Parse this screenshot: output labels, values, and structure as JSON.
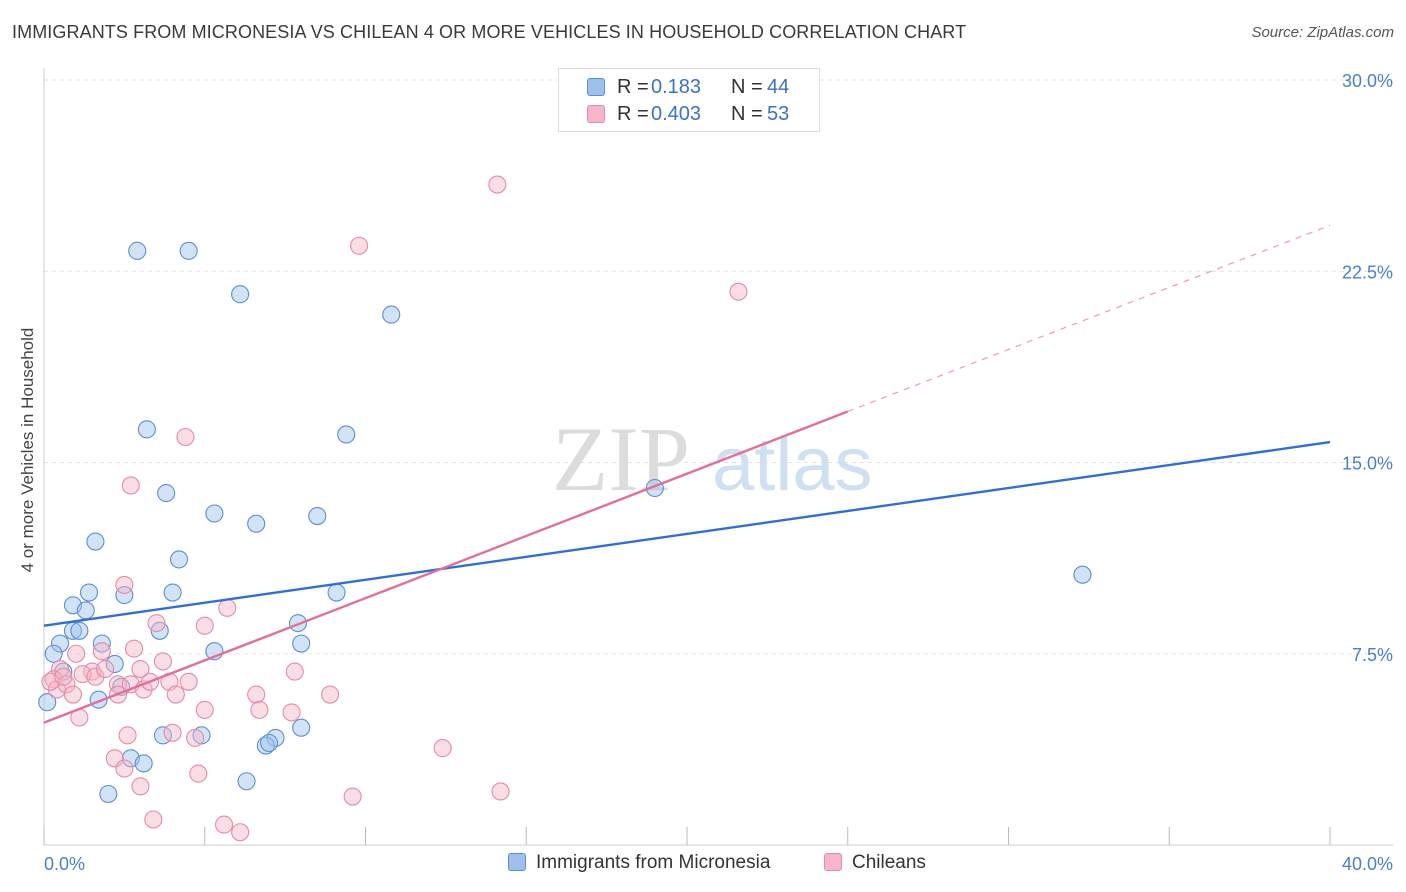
{
  "title": "IMMIGRANTS FROM MICRONESIA VS CHILEAN 4 OR MORE VEHICLES IN HOUSEHOLD CORRELATION CHART",
  "source": "Source: ZipAtlas.com",
  "watermark": {
    "zip": "ZIP",
    "atlas": "atlas"
  },
  "legend": {
    "rows": [
      {
        "r_label": "R =",
        "r_value": "0.183",
        "n_label": "N =",
        "n_value": "44",
        "color": "#9ec0ea"
      },
      {
        "r_label": "R =",
        "r_value": "0.403",
        "n_label": "N =",
        "n_value": "53",
        "color": "#f4b6c8"
      }
    ]
  },
  "chart_data": {
    "type": "scatter",
    "title": "IMMIGRANTS FROM MICRONESIA VS CHILEAN 4 OR MORE VEHICLES IN HOUSEHOLD CORRELATION CHART",
    "xlabel": "",
    "ylabel": "4 or more Vehicles in Household",
    "xlim": [
      0,
      40
    ],
    "ylim": [
      0,
      30
    ],
    "x_tick_labels": [
      {
        "value": 0,
        "label": "0.0%"
      },
      {
        "value": 40,
        "label": "40.0%"
      }
    ],
    "y_tick_labels": [
      {
        "value": 7.5,
        "label": "7.5%"
      },
      {
        "value": 15,
        "label": "15.0%"
      },
      {
        "value": 22.5,
        "label": "22.5%"
      },
      {
        "value": 30,
        "label": "30.0%"
      }
    ],
    "grid": true,
    "legend_position": "top-center",
    "series": [
      {
        "name": "Immigrants from Micronesia",
        "color": "#9ec0ea",
        "stroke": "#5b8fd4",
        "line_color": "#2f6fd0",
        "trend": {
          "x": [
            0,
            40
          ],
          "y": [
            8.6,
            15.8
          ]
        },
        "points": [
          [
            2.9,
            23.3
          ],
          [
            4.5,
            23.3
          ],
          [
            6.1,
            21.6
          ],
          [
            10.8,
            20.8
          ],
          [
            3.2,
            16.3
          ],
          [
            9.4,
            16.1
          ],
          [
            19.0,
            14.0
          ],
          [
            3.8,
            13.8
          ],
          [
            5.3,
            13.0
          ],
          [
            6.6,
            12.6
          ],
          [
            8.5,
            12.9
          ],
          [
            1.6,
            11.9
          ],
          [
            4.2,
            11.2
          ],
          [
            32.3,
            10.6
          ],
          [
            1.4,
            9.9
          ],
          [
            2.5,
            9.8
          ],
          [
            4.0,
            9.9
          ],
          [
            9.1,
            9.9
          ],
          [
            0.9,
            9.4
          ],
          [
            1.3,
            9.2
          ],
          [
            7.9,
            8.7
          ],
          [
            0.5,
            7.9
          ],
          [
            1.8,
            7.9
          ],
          [
            0.9,
            8.4
          ],
          [
            1.1,
            8.4
          ],
          [
            3.6,
            8.4
          ],
          [
            8.0,
            7.9
          ],
          [
            0.3,
            7.5
          ],
          [
            5.3,
            7.6
          ],
          [
            2.2,
            7.1
          ],
          [
            0.6,
            6.8
          ],
          [
            2.4,
            6.2
          ],
          [
            1.7,
            5.7
          ],
          [
            0.1,
            5.6
          ],
          [
            3.7,
            4.3
          ],
          [
            4.9,
            4.3
          ],
          [
            7.2,
            4.2
          ],
          [
            8.0,
            4.6
          ],
          [
            6.9,
            3.9
          ],
          [
            2.7,
            3.4
          ],
          [
            3.1,
            3.2
          ],
          [
            6.3,
            2.5
          ],
          [
            2.0,
            2.0
          ],
          [
            7.0,
            4.0
          ]
        ]
      },
      {
        "name": "Chileans",
        "color": "#f4b6c8",
        "stroke": "#e68aa6",
        "line_color": "#e0709a",
        "trend": {
          "x": [
            0,
            25
          ],
          "y": [
            4.8,
            17.0
          ]
        },
        "trend_dashed": {
          "x": [
            25,
            40
          ],
          "y": [
            17.0,
            24.3
          ]
        },
        "points": [
          [
            14.1,
            25.9
          ],
          [
            9.8,
            23.5
          ],
          [
            21.6,
            21.7
          ],
          [
            4.4,
            16.0
          ],
          [
            2.7,
            14.1
          ],
          [
            2.5,
            10.2
          ],
          [
            5.7,
            9.3
          ],
          [
            3.5,
            8.7
          ],
          [
            5.0,
            8.6
          ],
          [
            0.5,
            6.9
          ],
          [
            1.0,
            7.5
          ],
          [
            1.5,
            6.8
          ],
          [
            1.8,
            7.6
          ],
          [
            3.0,
            6.9
          ],
          [
            3.7,
            7.2
          ],
          [
            7.8,
            6.8
          ],
          [
            0.3,
            6.5
          ],
          [
            0.4,
            6.1
          ],
          [
            0.7,
            6.3
          ],
          [
            1.2,
            6.7
          ],
          [
            1.6,
            6.6
          ],
          [
            2.3,
            6.3
          ],
          [
            2.7,
            6.3
          ],
          [
            3.1,
            6.1
          ],
          [
            3.3,
            6.4
          ],
          [
            3.9,
            6.4
          ],
          [
            4.5,
            6.4
          ],
          [
            0.2,
            6.4
          ],
          [
            0.9,
            5.9
          ],
          [
            2.3,
            5.9
          ],
          [
            4.1,
            5.9
          ],
          [
            6.6,
            5.9
          ],
          [
            8.9,
            5.9
          ],
          [
            1.1,
            5.0
          ],
          [
            5.0,
            5.3
          ],
          [
            6.7,
            5.3
          ],
          [
            7.7,
            5.2
          ],
          [
            2.6,
            4.3
          ],
          [
            4.0,
            4.4
          ],
          [
            4.7,
            4.2
          ],
          [
            12.4,
            3.8
          ],
          [
            2.2,
            3.4
          ],
          [
            2.5,
            3.0
          ],
          [
            4.8,
            2.8
          ],
          [
            3.0,
            2.3
          ],
          [
            14.2,
            2.1
          ],
          [
            9.6,
            1.9
          ],
          [
            3.4,
            1.0
          ],
          [
            5.6,
            0.8
          ],
          [
            6.1,
            0.5
          ],
          [
            1.9,
            6.9
          ],
          [
            2.8,
            7.7
          ],
          [
            0.6,
            6.6
          ]
        ]
      }
    ]
  }
}
